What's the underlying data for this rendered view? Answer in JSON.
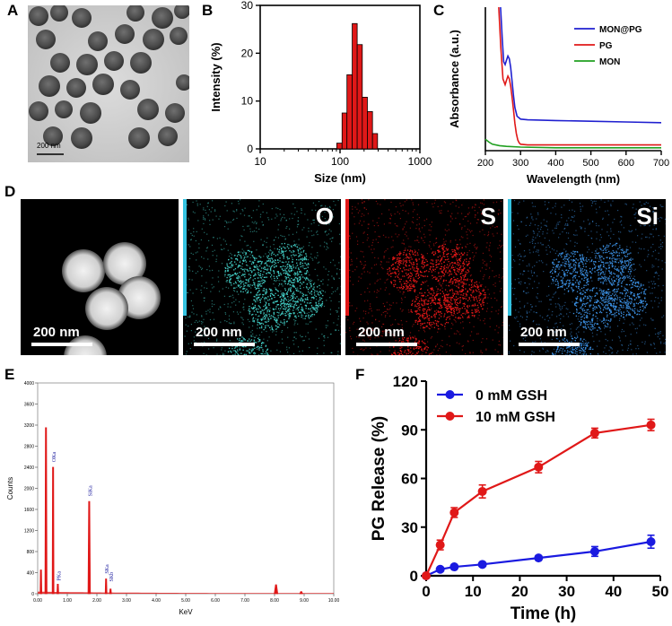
{
  "panel_letters": {
    "a": "A",
    "b": "B",
    "c": "C",
    "d": "D",
    "e": "E",
    "f": "F"
  },
  "panel_a": {
    "scalebar_label": "200 nm"
  },
  "panel_d": {
    "tiles": [
      {
        "element": "",
        "scalebar_label": "200 nm",
        "color": "#e8e8e8",
        "side_bar_color": ""
      },
      {
        "element": "O",
        "scalebar_label": "200 nm",
        "color": "#40c8c0",
        "side_bar_color": "#35c3e0"
      },
      {
        "element": "S",
        "scalebar_label": "200 nm",
        "color": "#e01818",
        "side_bar_color": "#e01818"
      },
      {
        "element": "Si",
        "scalebar_label": "200 nm",
        "color": "#3a8ee0",
        "side_bar_color": "#35c3e0"
      }
    ]
  },
  "chart_data": [
    {
      "id": "B",
      "type": "bar",
      "xlabel": "Size (nm)",
      "ylabel": "Intensity (%)",
      "xscale": "log",
      "xlim": [
        10,
        1000
      ],
      "ylim": [
        0,
        30
      ],
      "xticks": [
        10,
        100,
        1000
      ],
      "xtick_labels": [
        "10",
        "100",
        "1000"
      ],
      "yticks": [
        0,
        10,
        20,
        30
      ],
      "ytick_labels": [
        "0",
        "10",
        "20",
        "30"
      ],
      "bar_color": "#e01818",
      "bins": [
        {
          "lo": 91,
          "hi": 106,
          "value": 1.2
        },
        {
          "lo": 106,
          "hi": 122,
          "value": 7.5
        },
        {
          "lo": 122,
          "hi": 142,
          "value": 15.5
        },
        {
          "lo": 142,
          "hi": 164,
          "value": 26.2
        },
        {
          "lo": 164,
          "hi": 190,
          "value": 21.8
        },
        {
          "lo": 190,
          "hi": 220,
          "value": 10.8
        },
        {
          "lo": 220,
          "hi": 255,
          "value": 7.8
        },
        {
          "lo": 255,
          "hi": 295,
          "value": 3.2
        }
      ]
    },
    {
      "id": "C",
      "type": "line",
      "xlabel": "Wavelength (nm)",
      "ylabel": "Absorbance (a.u.)",
      "xlim": [
        200,
        700
      ],
      "ylim": [
        0,
        1
      ],
      "xticks": [
        200,
        300,
        400,
        500,
        600,
        700
      ],
      "xtick_labels": [
        "200",
        "300",
        "400",
        "500",
        "600",
        "700"
      ],
      "legend_position": "top-right",
      "series": [
        {
          "name": "MON@PG",
          "color": "#2020d0",
          "x": [
            243,
            248,
            252,
            256,
            260,
            264,
            268,
            272,
            276,
            280,
            284,
            290,
            300,
            320,
            400,
            500,
            600,
            700
          ],
          "y": [
            1.0,
            0.78,
            0.62,
            0.6,
            0.63,
            0.66,
            0.64,
            0.58,
            0.48,
            0.38,
            0.3,
            0.24,
            0.22,
            0.215,
            0.21,
            0.205,
            0.2,
            0.195
          ]
        },
        {
          "name": "PG",
          "color": "#e01818",
          "x": [
            238,
            244,
            250,
            256,
            260,
            264,
            268,
            272,
            276,
            280,
            284,
            288,
            292,
            296,
            300,
            320,
            400,
            500,
            600,
            700
          ],
          "y": [
            1.0,
            0.72,
            0.5,
            0.46,
            0.49,
            0.52,
            0.5,
            0.45,
            0.37,
            0.28,
            0.19,
            0.12,
            0.075,
            0.055,
            0.045,
            0.04,
            0.04,
            0.04,
            0.04,
            0.04
          ]
        },
        {
          "name": "MON",
          "color": "#20a020",
          "x": [
            200,
            210,
            220,
            240,
            260,
            300,
            400,
            500,
            600,
            700
          ],
          "y": [
            0.08,
            0.06,
            0.045,
            0.035,
            0.03,
            0.025,
            0.02,
            0.02,
            0.02,
            0.02
          ]
        }
      ]
    },
    {
      "id": "E",
      "type": "line",
      "xlabel": "KeV",
      "ylabel": "Counts",
      "xlim": [
        0,
        10
      ],
      "ylim": [
        0,
        4000
      ],
      "xticks": [
        0,
        1,
        2,
        3,
        4,
        5,
        6,
        7,
        8,
        9,
        10
      ],
      "xtick_labels": [
        "0.00",
        "1.00",
        "2.00",
        "3.00",
        "4.00",
        "5.00",
        "6.00",
        "7.00",
        "8.00",
        "9.00",
        "10.00"
      ],
      "yticks": [
        0,
        400,
        800,
        1200,
        1600,
        2000,
        2400,
        2800,
        3200,
        3600,
        4000
      ],
      "ytick_labels": [
        "0",
        "400",
        "800",
        "1200",
        "1600",
        "2000",
        "2400",
        "2800",
        "3200",
        "3600",
        "4000"
      ],
      "fill_color": "#e01818",
      "peaks": [
        {
          "x": 0.11,
          "height": 450,
          "width": 0.03
        },
        {
          "x": 0.28,
          "height": 3150,
          "width": 0.035
        },
        {
          "x": 0.52,
          "height": 2400,
          "width": 0.03
        },
        {
          "x": 0.68,
          "height": 180,
          "width": 0.03
        },
        {
          "x": 1.74,
          "height": 1750,
          "width": 0.04
        },
        {
          "x": 2.31,
          "height": 280,
          "width": 0.03
        },
        {
          "x": 2.46,
          "height": 90,
          "width": 0.03
        },
        {
          "x": 8.05,
          "height": 170,
          "width": 0.06
        },
        {
          "x": 8.9,
          "height": 40,
          "width": 0.05
        }
      ],
      "peak_labels": [
        {
          "text": "OKa",
          "x": 0.52,
          "y": 2500
        },
        {
          "text": "PKa",
          "x": 0.68,
          "y": 250
        },
        {
          "text": "SiKa",
          "x": 1.74,
          "y": 1850
        },
        {
          "text": "SKa",
          "x": 2.31,
          "y": 380
        },
        {
          "text": "SKb",
          "x": 2.46,
          "y": 230
        }
      ]
    },
    {
      "id": "F",
      "type": "line",
      "xlabel": "Time (h)",
      "ylabel": "PG Release (%)",
      "xlim": [
        0,
        50
      ],
      "ylim": [
        0,
        120
      ],
      "xticks": [
        0,
        10,
        20,
        30,
        40,
        50
      ],
      "xtick_labels": [
        "0",
        "10",
        "20",
        "30",
        "40",
        "50"
      ],
      "yticks": [
        0,
        30,
        60,
        90,
        120
      ],
      "ytick_labels": [
        "0",
        "30",
        "60",
        "90",
        "120"
      ],
      "legend_position": "top-left",
      "series": [
        {
          "name": "0 mM GSH",
          "color": "#1a1ae0",
          "x": [
            0,
            3,
            6,
            12,
            24,
            36,
            48
          ],
          "y": [
            0,
            4,
            5.5,
            7,
            11,
            15,
            21
          ],
          "err": [
            0,
            1,
            1,
            1,
            1.2,
            3,
            4
          ]
        },
        {
          "name": "10 mM GSH",
          "color": "#e01818",
          "x": [
            0,
            3,
            6,
            12,
            24,
            36,
            48
          ],
          "y": [
            0,
            19,
            39,
            52,
            67,
            88,
            93
          ],
          "err": [
            0,
            3,
            3,
            4,
            3.5,
            3,
            3.5
          ]
        }
      ]
    }
  ]
}
